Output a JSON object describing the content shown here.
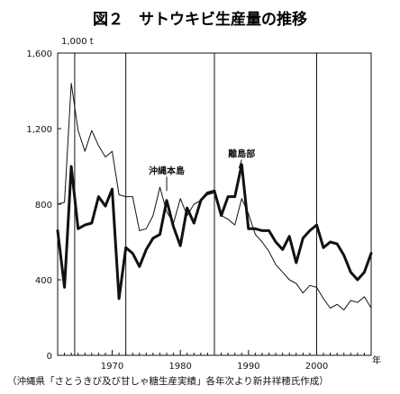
{
  "chart_data": {
    "type": "line",
    "title": "図２　サトウキビ生産量の推移",
    "unit_label": "1,000 t",
    "xlabel": "年",
    "source": "（沖縄県「さとうきび及び甘しゃ糖生産実績」各年次より新井祥穂氏作成）",
    "xlim": [
      1962,
      2008
    ],
    "ylim": [
      0,
      1600
    ],
    "x_ticks": [
      1970,
      1980,
      1990,
      2000
    ],
    "x_tick_labels": [
      "1970",
      "1980",
      "1990",
      "2000"
    ],
    "y_ticks": [
      0,
      400,
      800,
      1200,
      1600
    ],
    "y_tick_labels": [
      "0",
      "400",
      "800",
      "1,200",
      "1,600"
    ],
    "vertical_lines": [
      1964.5,
      1972,
      1985,
      2000
    ],
    "grid": false,
    "x": [
      1962,
      1963,
      1964,
      1965,
      1966,
      1967,
      1968,
      1969,
      1970,
      1971,
      1972,
      1973,
      1974,
      1975,
      1976,
      1977,
      1978,
      1979,
      1980,
      1981,
      1982,
      1983,
      1984,
      1985,
      1986,
      1987,
      1988,
      1989,
      1990,
      1991,
      1992,
      1993,
      1994,
      1995,
      1996,
      1997,
      1998,
      1999,
      2000,
      2001,
      2002,
      2003,
      2004,
      2005,
      2006,
      2007,
      2008
    ],
    "series": [
      {
        "name": "沖縄本島",
        "style": "thin",
        "color": "#111111",
        "values": [
          800,
          810,
          1440,
          1190,
          1080,
          1190,
          1110,
          1050,
          1080,
          850,
          840,
          840,
          660,
          670,
          740,
          890,
          760,
          700,
          830,
          740,
          800,
          820,
          850,
          860,
          740,
          720,
          690,
          830,
          750,
          640,
          600,
          550,
          480,
          440,
          400,
          380,
          330,
          370,
          360,
          300,
          250,
          270,
          240,
          290,
          280,
          310,
          250
        ]
      },
      {
        "name": "離島部",
        "style": "bold",
        "color": "#111111",
        "values": [
          660,
          360,
          1000,
          670,
          690,
          700,
          840,
          790,
          880,
          300,
          570,
          540,
          470,
          560,
          620,
          640,
          820,
          680,
          580,
          780,
          700,
          820,
          860,
          870,
          740,
          840,
          840,
          1010,
          670,
          670,
          660,
          660,
          600,
          560,
          630,
          490,
          620,
          660,
          690,
          570,
          600,
          590,
          530,
          440,
          400,
          440,
          540
        ]
      }
    ],
    "annotations": [
      {
        "text": "沖縄本島",
        "x": 1978,
        "y": 960,
        "target_x": 1978,
        "target_y": 870
      },
      {
        "text": "離島部",
        "x": 1989,
        "y": 1050,
        "target_x": 1988.6,
        "target_y": 990
      }
    ]
  }
}
